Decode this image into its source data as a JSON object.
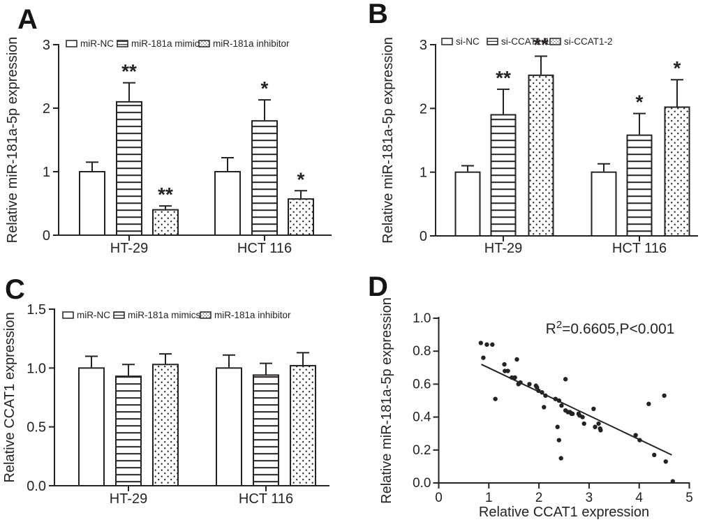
{
  "colors": {
    "ink": "#262223",
    "background": "#ffffff"
  },
  "chart_data": [
    {
      "panel": "A",
      "type": "bar",
      "ylabel": "Relative miR-181a-5p expression",
      "ylim": [
        0,
        3
      ],
      "yticks": [
        "0",
        "1",
        "2",
        "3"
      ],
      "categories": [
        "HT-29",
        "HCT 116"
      ],
      "legend_position": "top",
      "series": [
        {
          "name": "miR-NC",
          "pattern": "open",
          "values": [
            1.0,
            1.0
          ],
          "errors": [
            0.15,
            0.22
          ],
          "sig": [
            "",
            ""
          ]
        },
        {
          "name": "miR-181a mimics",
          "pattern": "hlines",
          "values": [
            2.1,
            1.8
          ],
          "errors": [
            0.3,
            0.33
          ],
          "sig": [
            "**",
            "*"
          ]
        },
        {
          "name": "miR-181a inhibitor",
          "pattern": "dots",
          "values": [
            0.4,
            0.57
          ],
          "errors": [
            0.06,
            0.13
          ],
          "sig": [
            "**",
            "*"
          ]
        }
      ]
    },
    {
      "panel": "B",
      "type": "bar",
      "ylabel": "Relative miR-181a-5p expression",
      "ylim": [
        0,
        3
      ],
      "yticks": [
        "0",
        "1",
        "2",
        "3"
      ],
      "categories": [
        "HT-29",
        "HCT 116"
      ],
      "legend_position": "top",
      "series": [
        {
          "name": "si-NC",
          "pattern": "open",
          "values": [
            1.0,
            1.0
          ],
          "errors": [
            0.1,
            0.13
          ],
          "sig": [
            "",
            ""
          ]
        },
        {
          "name": "si-CCAT1-1",
          "pattern": "hlines",
          "values": [
            1.9,
            1.58
          ],
          "errors": [
            0.4,
            0.34
          ],
          "sig": [
            "**",
            "*"
          ]
        },
        {
          "name": "si-CCAT1-2",
          "pattern": "dots",
          "values": [
            2.52,
            2.02
          ],
          "errors": [
            0.3,
            0.43
          ],
          "sig": [
            "**",
            "*"
          ]
        }
      ]
    },
    {
      "panel": "C",
      "type": "bar",
      "ylabel": "Relative CCAT1 expression",
      "ylim": [
        0,
        1.5
      ],
      "yticks": [
        "0.0",
        "0.5",
        "1.0",
        "1.5"
      ],
      "categories": [
        "HT-29",
        "HCT 116"
      ],
      "legend_position": "top",
      "series": [
        {
          "name": "miR-NC",
          "pattern": "open",
          "values": [
            1.0,
            1.0
          ],
          "errors": [
            0.1,
            0.11
          ],
          "sig": [
            "",
            ""
          ]
        },
        {
          "name": "miR-181a mimics",
          "pattern": "hlines",
          "values": [
            0.93,
            0.94
          ],
          "errors": [
            0.1,
            0.1
          ],
          "sig": [
            "",
            ""
          ]
        },
        {
          "name": "miR-181a inhibitor",
          "pattern": "dots",
          "values": [
            1.03,
            1.02
          ],
          "errors": [
            0.09,
            0.11
          ],
          "sig": [
            "",
            ""
          ]
        }
      ]
    },
    {
      "panel": "D",
      "type": "scatter",
      "xlabel": "Relative CCAT1 expression",
      "ylabel": "Relative miR-181a-5p expression",
      "xlim": [
        0,
        5
      ],
      "ylim": [
        0,
        1
      ],
      "xticks": [
        "0",
        "1",
        "2",
        "3",
        "4",
        "5"
      ],
      "yticks": [
        "0.0",
        "0.2",
        "0.4",
        "0.6",
        "0.8",
        "1.0"
      ],
      "annotation": {
        "prefix": "R",
        "sup": "2",
        "rest": "=0.6605,P<0.001"
      },
      "trendline": {
        "x1": 0.85,
        "y1": 0.72,
        "x2": 4.65,
        "y2": 0.17
      },
      "points": [
        [
          0.84,
          0.85
        ],
        [
          0.96,
          0.84
        ],
        [
          1.07,
          0.84
        ],
        [
          0.89,
          0.76
        ],
        [
          1.13,
          0.51
        ],
        [
          1.31,
          0.72
        ],
        [
          1.32,
          0.68
        ],
        [
          1.38,
          0.68
        ],
        [
          1.46,
          0.64
        ],
        [
          1.52,
          0.64
        ],
        [
          1.56,
          0.75
        ],
        [
          1.59,
          0.6
        ],
        [
          1.63,
          0.61
        ],
        [
          1.81,
          0.6
        ],
        [
          1.94,
          0.59
        ],
        [
          1.96,
          0.58
        ],
        [
          1.99,
          0.56
        ],
        [
          2.06,
          0.55
        ],
        [
          2.1,
          0.46
        ],
        [
          2.13,
          0.53
        ],
        [
          2.33,
          0.51
        ],
        [
          2.37,
          0.34
        ],
        [
          2.4,
          0.5
        ],
        [
          2.4,
          0.26
        ],
        [
          2.44,
          0.15
        ],
        [
          2.45,
          0.47
        ],
        [
          2.53,
          0.63
        ],
        [
          2.53,
          0.44
        ],
        [
          2.58,
          0.43
        ],
        [
          2.62,
          0.43
        ],
        [
          2.65,
          0.42
        ],
        [
          2.67,
          0.42
        ],
        [
          2.79,
          0.42
        ],
        [
          2.81,
          0.41
        ],
        [
          2.87,
          0.4
        ],
        [
          2.9,
          0.36
        ],
        [
          3.09,
          0.45
        ],
        [
          3.12,
          0.34
        ],
        [
          3.19,
          0.36
        ],
        [
          3.22,
          0.33
        ],
        [
          3.23,
          0.32
        ],
        [
          3.93,
          0.29
        ],
        [
          4.01,
          0.26
        ],
        [
          4.19,
          0.48
        ],
        [
          4.3,
          0.17
        ],
        [
          4.5,
          0.53
        ],
        [
          4.53,
          0.13
        ],
        [
          4.67,
          0.01
        ]
      ]
    }
  ]
}
